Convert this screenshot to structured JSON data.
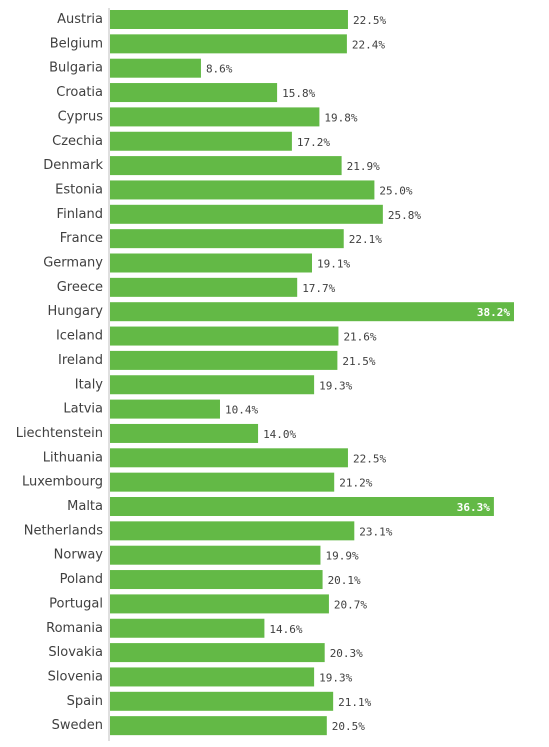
{
  "colors": {
    "bar": "#63b946",
    "axis": "#bfbfbf",
    "text": "#404040"
  },
  "chart_data": {
    "type": "bar",
    "orientation": "horizontal",
    "title": "",
    "xlabel": "",
    "ylabel": "",
    "xlim": [
      0,
      38.2
    ],
    "grid": false,
    "legend": "none",
    "categories": [
      "Austria",
      "Belgium",
      "Bulgaria",
      "Croatia",
      "Cyprus",
      "Czechia",
      "Denmark",
      "Estonia",
      "Finland",
      "France",
      "Germany",
      "Greece",
      "Hungary",
      "Iceland",
      "Ireland",
      "Italy",
      "Latvia",
      "Liechtenstein",
      "Lithuania",
      "Luxembourg",
      "Malta",
      "Netherlands",
      "Norway",
      "Poland",
      "Portugal",
      "Romania",
      "Slovakia",
      "Slovenia",
      "Spain",
      "Sweden"
    ],
    "values": [
      22.5,
      22.4,
      8.6,
      15.8,
      19.8,
      17.2,
      21.9,
      25.0,
      25.8,
      22.1,
      19.1,
      17.7,
      38.2,
      21.6,
      21.5,
      19.3,
      10.4,
      14.0,
      22.5,
      21.2,
      36.3,
      23.1,
      19.9,
      20.1,
      20.7,
      14.6,
      20.3,
      19.3,
      21.1,
      20.5
    ],
    "value_labels": [
      "22.5%",
      "22.4%",
      "8.6%",
      "15.8%",
      "19.8%",
      "17.2%",
      "21.9%",
      "25.0%",
      "25.8%",
      "22.1%",
      "19.1%",
      "17.7%",
      "38.2%",
      "21.6%",
      "21.5%",
      "19.3%",
      "10.4%",
      "14.0%",
      "22.5%",
      "21.2%",
      "36.3%",
      "23.1%",
      "19.9%",
      "20.1%",
      "20.7%",
      "14.6%",
      "20.3%",
      "19.3%",
      "21.1%",
      "20.5%"
    ]
  }
}
